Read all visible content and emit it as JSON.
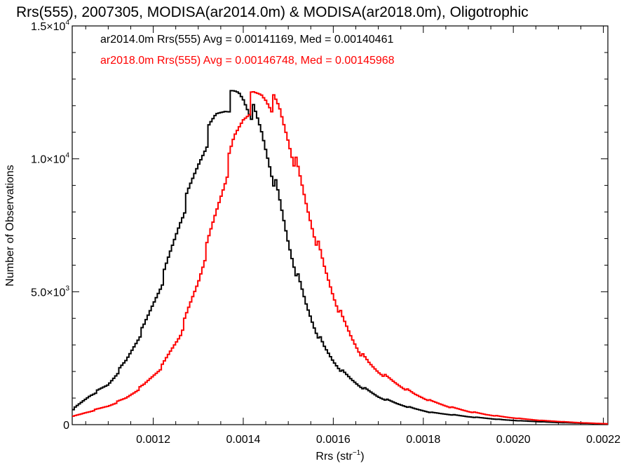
{
  "chart_data": {
    "type": "line",
    "title": "Rrs(555), 2007305, MODISA(ar2014.0m) & MODISA(ar2018.0m), Oligotrophic",
    "xlabel_main": "Rrs (str",
    "xlabel_sup": "−1",
    "xlabel_close": ")",
    "ylabel": "Number of Observations",
    "xlim": [
      0.00102,
      0.00221
    ],
    "ylim": [
      0,
      15000
    ],
    "x_ticks": [
      {
        "value": 0.0012,
        "label": "0.0012"
      },
      {
        "value": 0.0014,
        "label": "0.0014"
      },
      {
        "value": 0.0016,
        "label": "0.0016"
      },
      {
        "value": 0.0018,
        "label": "0.0018"
      },
      {
        "value": 0.002,
        "label": "0.0020"
      },
      {
        "value": 0.0022,
        "label": "0.0022"
      }
    ],
    "y_ticks": [
      {
        "value": 0,
        "mant": "0",
        "exp": ""
      },
      {
        "value": 5000,
        "mant": "5.0×10",
        "exp": "3"
      },
      {
        "value": 10000,
        "mant": "1.0×10",
        "exp": "4"
      },
      {
        "value": 15000,
        "mant": "1.5×10",
        "exp": "4"
      }
    ],
    "series": [
      {
        "name": "ar2014.0m",
        "legend": "ar2014.0m Rrs(555) Avg = 0.00141169, Med = 0.00140461",
        "color": "#000000",
        "x": [
          0.00102,
          0.00106,
          0.0011,
          0.00114,
          0.00118,
          0.00122,
          0.00126,
          0.0013,
          0.00132,
          0.00134,
          0.00136,
          0.00138,
          0.00139,
          0.0014,
          0.00141,
          0.00142,
          0.00144,
          0.00146,
          0.00148,
          0.0015,
          0.00152,
          0.00154,
          0.00156,
          0.00158,
          0.0016,
          0.00162,
          0.00164,
          0.00166,
          0.00168,
          0.0017,
          0.00174,
          0.00178,
          0.00182,
          0.00186,
          0.0019,
          0.00194,
          0.00198,
          0.00202,
          0.00206,
          0.0021,
          0.00214,
          0.00218,
          0.00221
        ],
        "y": [
          550,
          1100,
          1500,
          2400,
          3700,
          5400,
          7700,
          9800,
          10800,
          11600,
          12000,
          12300,
          12400,
          12300,
          12050,
          11800,
          11000,
          9800,
          8400,
          6900,
          5600,
          4500,
          3600,
          2900,
          2400,
          2000,
          1700,
          1450,
          1250,
          1050,
          800,
          600,
          450,
          380,
          300,
          240,
          180,
          140,
          110,
          80,
          60,
          40,
          30
        ]
      },
      {
        "name": "ar2018.0m",
        "legend": "ar2018.0m Rrs(555) Avg = 0.00146748, Med = 0.00145968",
        "color": "#ff0000",
        "x": [
          0.00102,
          0.00106,
          0.0011,
          0.00114,
          0.00118,
          0.00122,
          0.00126,
          0.0013,
          0.00134,
          0.00136,
          0.00138,
          0.0014,
          0.00142,
          0.00144,
          0.00145,
          0.00146,
          0.00148,
          0.0015,
          0.00152,
          0.00154,
          0.00156,
          0.00158,
          0.0016,
          0.00162,
          0.00164,
          0.00166,
          0.00168,
          0.0017,
          0.00174,
          0.00178,
          0.00182,
          0.00186,
          0.0019,
          0.00194,
          0.00198,
          0.00202,
          0.00206,
          0.0021,
          0.00214,
          0.00218,
          0.00221
        ],
        "y": [
          300,
          500,
          700,
          1000,
          1500,
          2200,
          3400,
          5400,
          8000,
          9300,
          10700,
          11600,
          12200,
          12400,
          12350,
          12200,
          11800,
          10800,
          9600,
          8300,
          7100,
          5900,
          4900,
          4000,
          3300,
          2700,
          2300,
          2000,
          1550,
          1150,
          870,
          660,
          500,
          380,
          290,
          220,
          160,
          120,
          80,
          50,
          30
        ]
      }
    ]
  }
}
